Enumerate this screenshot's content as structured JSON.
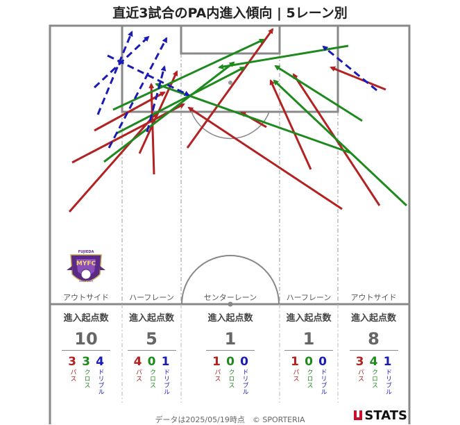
{
  "title": "直近3試合のPA内進入傾向 | 5レーン別",
  "lanes": [
    {
      "name": "アウトサイド",
      "label": "進入起点数",
      "total": "10",
      "pass": "3",
      "cross": "3",
      "dribble": "4"
    },
    {
      "name": "ハーフレーン",
      "label": "進入起点数",
      "total": "5",
      "pass": "4",
      "cross": "0",
      "dribble": "1"
    },
    {
      "name": "センターレーン",
      "label": "進入起点数",
      "total": "1",
      "pass": "1",
      "cross": "0",
      "dribble": "0"
    },
    {
      "name": "ハーフレーン",
      "label": "進入起点数",
      "total": "1",
      "pass": "1",
      "cross": "0",
      "dribble": "0"
    },
    {
      "name": "アウトサイド",
      "label": "進入起点数",
      "total": "8",
      "pass": "3",
      "cross": "4",
      "dribble": "1"
    }
  ],
  "type_labels": {
    "pass": "パス",
    "cross": "クロス",
    "dribble": "ドリブル"
  },
  "colors": {
    "pass": "#b22222",
    "cross": "#1e8a1e",
    "dribble": "#1a1ab5"
  },
  "logo": {
    "top_text": "FUJIEDA",
    "main_text": "MYFC",
    "sub_text": "SINCE 2009"
  },
  "footer": "データは2025/05/19時点　© SPORTERIA",
  "brand": "STATS",
  "icons": {
    "brand_mark": "stats-logo-icon",
    "club": "myfc-crest-icon"
  }
}
